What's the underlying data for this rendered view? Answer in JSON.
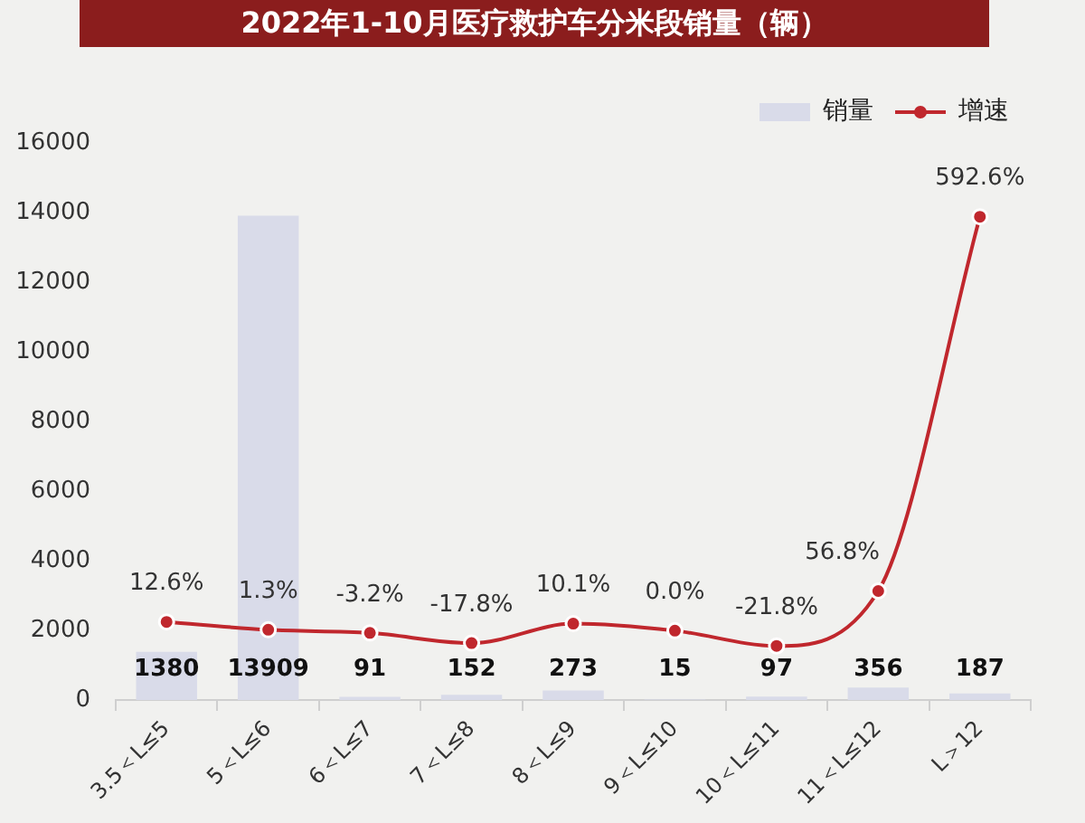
{
  "chart_data": {
    "type": "bar",
    "title": "2022年1-10月医疗救护车分米段销量（辆）",
    "categories": [
      "3.5＜L≤5",
      "5＜L≤6",
      "6＜L≤7",
      "7＜L≤8",
      "8＜L≤9",
      "9＜L≤10",
      "10＜L≤11",
      "11＜L≤12",
      "L＞12"
    ],
    "series": [
      {
        "name": "销量",
        "color": "#d9dbe9",
        "values": [
          1380,
          13909,
          91,
          152,
          273,
          15,
          97,
          356,
          187
        ],
        "value_labels": [
          "1380",
          "13909",
          "91",
          "152",
          "273",
          "15",
          "97",
          "356",
          "187"
        ]
      },
      {
        "name": "增速",
        "type": "line",
        "axis": "y2",
        "color": "#c0272d",
        "values": [
          12.6,
          1.3,
          -3.2,
          -17.8,
          10.1,
          0.0,
          -21.8,
          56.8,
          592.6
        ],
        "value_labels": [
          "12.6%",
          "1.3%",
          "-3.2%",
          "-17.8%",
          "10.1%",
          "0.0%",
          "-21.8%",
          "56.8%",
          "592.6%"
        ]
      }
    ],
    "ylim": [
      0,
      16000
    ],
    "yticks": [
      0,
      2000,
      4000,
      6000,
      8000,
      10000,
      12000,
      14000,
      16000
    ],
    "grid": false,
    "legend": "top right",
    "marker": "circle"
  }
}
